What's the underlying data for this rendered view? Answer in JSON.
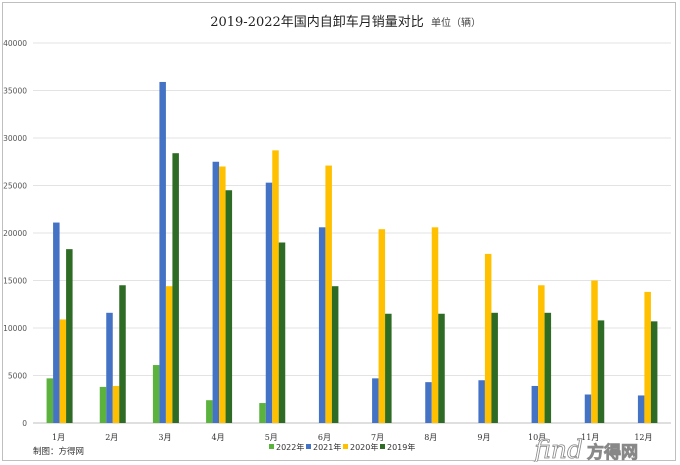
{
  "chart_data": {
    "type": "bar",
    "title": "2019-2022年国内自卸车月销量对比",
    "unit_label": "单位（辆）",
    "categories": [
      "1月",
      "2月",
      "3月",
      "4月",
      "5月",
      "6月",
      "7月",
      "8月",
      "9月",
      "10月",
      "11月",
      "12月"
    ],
    "series": [
      {
        "name": "2022年",
        "color": "#5bb33d",
        "values": [
          4700,
          3800,
          6100,
          2400,
          2100,
          null,
          null,
          null,
          null,
          null,
          null,
          null
        ]
      },
      {
        "name": "2021年",
        "color": "#4472c4",
        "values": [
          21100,
          11600,
          35900,
          27500,
          25300,
          20600,
          4700,
          4300,
          4500,
          3900,
          3000,
          2900
        ]
      },
      {
        "name": "2020年",
        "color": "#ffc000",
        "values": [
          10900,
          3900,
          14400,
          27000,
          28700,
          27100,
          20400,
          20600,
          17800,
          14500,
          15000,
          13800
        ]
      },
      {
        "name": "2019年",
        "color": "#2e6b24",
        "values": [
          18300,
          14500,
          28400,
          24500,
          19000,
          14400,
          11500,
          11500,
          11600,
          11600,
          10800,
          10700
        ]
      }
    ],
    "ylim": [
      0,
      40000
    ],
    "yticks": [
      0,
      5000,
      10000,
      15000,
      20000,
      25000,
      30000,
      35000,
      40000
    ],
    "grid": true,
    "legend_position": "bottom"
  },
  "credit": "制图：方得网",
  "watermark": {
    "latin": "find",
    "chinese": "方得网"
  }
}
